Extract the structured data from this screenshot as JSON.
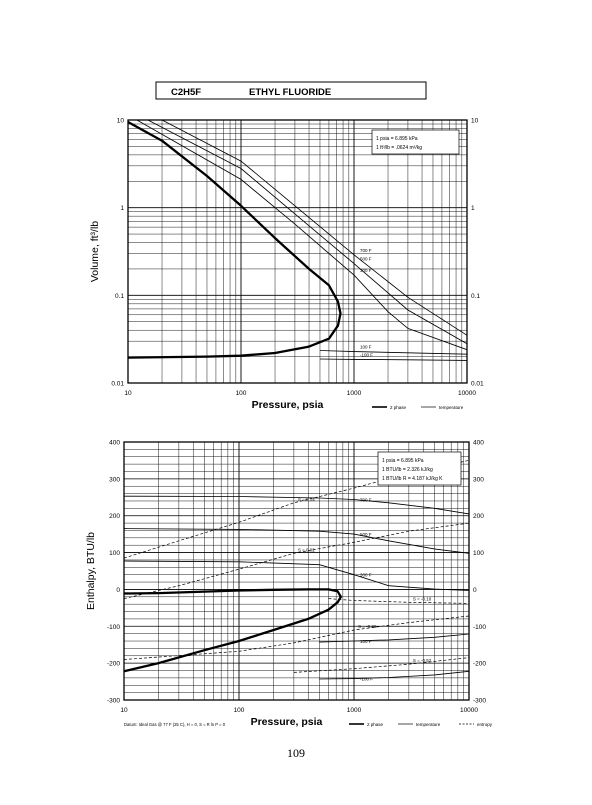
{
  "header": {
    "formula": "C2H5F",
    "name": "ETHYL FLUORIDE"
  },
  "page_number": "109",
  "chart_data": [
    {
      "type": "line",
      "xlabel": "Pressure,  psia",
      "ylabel": "Volume, ft^3/lb",
      "x_scale": "log",
      "y_scale": "log",
      "xlim": [
        10,
        10000
      ],
      "ylim": [
        0.01,
        10
      ],
      "x_ticks": [
        "10",
        "100",
        "1000",
        "10000"
      ],
      "y_ticks": [
        "0.01",
        "0.1",
        "1",
        "10"
      ],
      "y_ticks_right": [
        "0.01",
        "0.1",
        "1",
        "10"
      ],
      "grid": true,
      "conversion_box": [
        "1 psia = 6.895 kPa",
        "1 ft^3/lb = .0624 m^3/kg"
      ],
      "legend": [
        {
          "label": "2 phase",
          "style": "thick"
        },
        {
          "label": "temperature",
          "style": "thin"
        }
      ],
      "dome": {
        "liquid": [
          [
            10,
            0.0195
          ],
          [
            50,
            0.02
          ],
          [
            100,
            0.0205
          ],
          [
            200,
            0.022
          ],
          [
            400,
            0.026
          ],
          [
            600,
            0.032
          ],
          [
            720,
            0.045
          ]
        ],
        "critical": [
          760,
          0.062
        ],
        "vapor": [
          [
            720,
            0.085
          ],
          [
            600,
            0.13
          ],
          [
            400,
            0.2
          ],
          [
            200,
            0.45
          ],
          [
            100,
            1.05
          ],
          [
            50,
            2.3
          ],
          [
            20,
            5.8
          ],
          [
            10,
            9.5
          ]
        ]
      },
      "series": [
        {
          "name": "700 F",
          "values": [
            [
              20,
              10
            ],
            [
              100,
              3.4
            ],
            [
              300,
              1.05
            ],
            [
              1000,
              0.29
            ],
            [
              3000,
              0.095
            ],
            [
              10000,
              0.035
            ]
          ]
        },
        {
          "name": "500 F",
          "values": [
            [
              15,
              10
            ],
            [
              100,
              2.8
            ],
            [
              300,
              0.85
            ],
            [
              1000,
              0.23
            ],
            [
              3000,
              0.068
            ],
            [
              10000,
              0.028
            ]
          ]
        },
        {
          "name": "300 F",
          "values": [
            [
              12,
              10
            ],
            [
              100,
              2.1
            ],
            [
              300,
              0.65
            ],
            [
              1000,
              0.17
            ],
            [
              2000,
              0.065
            ],
            [
              3000,
              0.042
            ],
            [
              10000,
              0.024
            ]
          ]
        },
        {
          "name": "100 F",
          "values": [
            [
              500,
              0.0235
            ],
            [
              1000,
              0.0228
            ],
            [
              3000,
              0.0221
            ],
            [
              10000,
              0.0213
            ]
          ]
        },
        {
          "name": "-100 F",
          "values": [
            [
              500,
              0.0188
            ],
            [
              1000,
              0.0186
            ],
            [
              3000,
              0.0184
            ],
            [
              10000,
              0.0181
            ]
          ]
        }
      ]
    },
    {
      "type": "line",
      "xlabel": "Pressure,  psia",
      "ylabel": "Enthalpy,  BTU/lb",
      "x_scale": "log",
      "xlim": [
        10,
        10000
      ],
      "ylim": [
        -300,
        400
      ],
      "x_ticks": [
        "10",
        "100",
        "1000",
        "10000"
      ],
      "y_ticks": [
        "-300",
        "-200",
        "-100",
        "0",
        "100",
        "200",
        "300",
        "400"
      ],
      "y_ticks_right": [
        "-300",
        "-200",
        "-100",
        "0",
        "100",
        "200",
        "300",
        "400"
      ],
      "grid": true,
      "conversion_box": [
        "1 psia = 6.895 kPa",
        "1 BTU/lb = 2.326 kJ/kg",
        "1 BTU/lb R = 4.187 kJ/kg K"
      ],
      "datum": "Datum: Ideal Gas @ 77 F (25 C),  H = 0,  S = R ln P = 0",
      "legend": [
        {
          "label": "2 phase",
          "style": "thick"
        },
        {
          "label": "temperature",
          "style": "thin"
        },
        {
          "label": "entropy",
          "style": "dashed"
        }
      ],
      "dome": {
        "liquid": [
          [
            10,
            -222
          ],
          [
            20,
            -200
          ],
          [
            50,
            -165
          ],
          [
            100,
            -140
          ],
          [
            200,
            -110
          ],
          [
            400,
            -80
          ],
          [
            600,
            -55
          ],
          [
            720,
            -35
          ]
        ],
        "critical": [
          770,
          -20
        ],
        "vapor": [
          [
            720,
            -5
          ],
          [
            600,
            0
          ],
          [
            400,
            0
          ],
          [
            200,
            -1
          ],
          [
            100,
            -3
          ],
          [
            50,
            -6
          ],
          [
            20,
            -10
          ],
          [
            10,
            -11
          ]
        ]
      },
      "series": [
        {
          "name": "700 F",
          "values": [
            [
              10,
              253
            ],
            [
              100,
              252
            ],
            [
              500,
              248
            ],
            [
              1000,
              244
            ],
            [
              2000,
              235
            ],
            [
              5000,
              220
            ],
            [
              10000,
              205
            ]
          ]
        },
        {
          "name": "500 F",
          "values": [
            [
              10,
              165
            ],
            [
              100,
              163
            ],
            [
              500,
              158
            ],
            [
              1000,
              150
            ],
            [
              2000,
              132
            ],
            [
              5000,
              110
            ],
            [
              10000,
              98
            ]
          ]
        },
        {
          "name": "300 F",
          "values": [
            [
              10,
              77
            ],
            [
              100,
              75
            ],
            [
              500,
              67
            ],
            [
              1000,
              40
            ],
            [
              2000,
              10
            ],
            [
              5000,
              1
            ],
            [
              10000,
              -3
            ]
          ]
        },
        {
          "name": "100 F",
          "values": [
            [
              500,
              -143
            ],
            [
              1000,
              -140
            ],
            [
              2000,
              -137
            ],
            [
              5000,
              -130
            ],
            [
              10000,
              -121
            ]
          ]
        },
        {
          "name": "-100 F",
          "values": [
            [
              500,
              -243
            ],
            [
              1000,
              -242
            ],
            [
              2000,
              -239
            ],
            [
              5000,
              -232
            ],
            [
              10000,
              -222
            ]
          ]
        }
      ],
      "entropy_lines": [
        {
          "name": "S = 0.14",
          "values": [
            [
              10,
              85
            ],
            [
              30,
              132
            ],
            [
              100,
              182
            ],
            [
              300,
              235
            ],
            [
              1000,
              275
            ],
            [
              3000,
              315
            ],
            [
              10000,
              350
            ]
          ]
        },
        {
          "name": "S = 0.02",
          "values": [
            [
              10,
              -25
            ],
            [
              30,
              10
            ],
            [
              100,
              55
            ],
            [
              300,
              98
            ],
            [
              1000,
              128
            ],
            [
              3000,
              158
            ],
            [
              10000,
              180
            ]
          ]
        },
        {
          "name": "S = -0.10",
          "values": [
            [
              600,
              -25
            ],
            [
              1000,
              -30
            ],
            [
              3000,
              -35
            ],
            [
              10000,
              -38
            ]
          ]
        },
        {
          "name": "S = -0.26",
          "values": [
            [
              10,
              -190
            ],
            [
              100,
              -168
            ],
            [
              300,
              -145
            ],
            [
              1000,
              -110
            ],
            [
              3000,
              -90
            ],
            [
              10000,
              -72
            ]
          ]
        },
        {
          "name": "S = -0.52",
          "values": [
            [
              300,
              -225
            ],
            [
              1000,
              -215
            ],
            [
              3000,
              -203
            ],
            [
              10000,
              -185
            ]
          ]
        }
      ]
    }
  ]
}
